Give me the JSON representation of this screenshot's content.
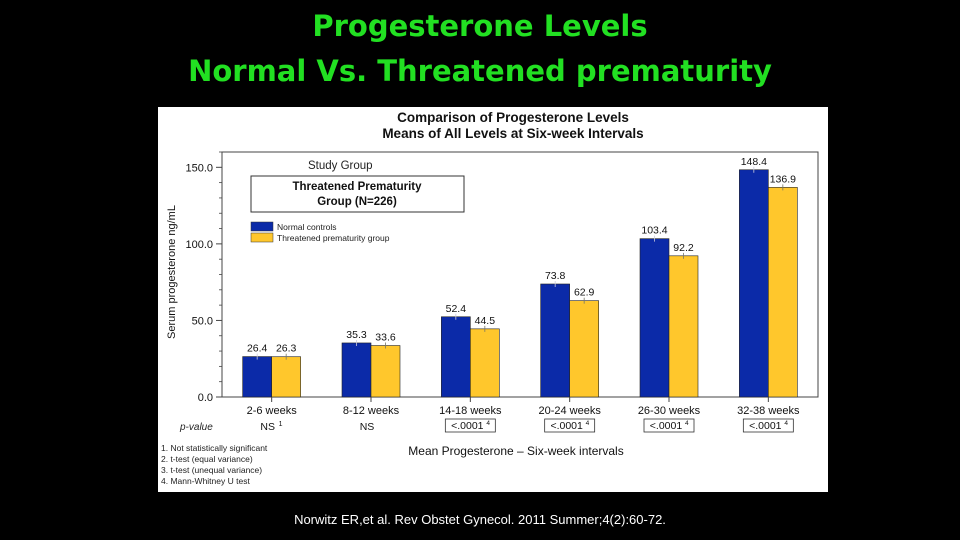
{
  "slide": {
    "title_line1": "Progesterone Levels",
    "title_line2": "Normal Vs. Threatened prematurity",
    "citation": "Norwitz ER,et al. Rev Obstet Gynecol. 2011 Summer;4(2):60-72."
  },
  "colors": {
    "background": "#000000",
    "title": "#22e022",
    "normal_controls": "#0b2aa8",
    "threatened_group": "#ffc72c"
  },
  "chart_data": {
    "type": "bar",
    "title": "Comparison of Progesterone Levels",
    "subtitle": "Means of All Levels at Six-week Intervals",
    "xlabel": "Mean Progesterone – Six-week intervals",
    "ylabel": "Serum progesterone ng/mL",
    "ylim": [
      0,
      160
    ],
    "yticks": [
      "0.0",
      "50.0",
      "100.0",
      "150.0"
    ],
    "ytick_values": [
      0,
      50,
      100,
      150
    ],
    "categories": [
      "2-6 weeks",
      "8-12 weeks",
      "14-18 weeks",
      "20-24 weeks",
      "26-30 weeks",
      "32-38 weeks"
    ],
    "series": [
      {
        "name": "Normal controls",
        "color": "#0b2aa8",
        "values": [
          26.4,
          35.3,
          52.4,
          73.8,
          103.4,
          148.4
        ]
      },
      {
        "name": "Threatened prematurity group",
        "color": "#ffc72c",
        "values": [
          26.3,
          33.6,
          44.5,
          62.9,
          92.2,
          136.9
        ]
      }
    ],
    "data_labels": {
      "normal": [
        "26.4",
        "35.3",
        "52.4",
        "73.8",
        "103.4",
        "148.4"
      ],
      "threatened": [
        "26.3",
        "33.6",
        "44.5",
        "62.9",
        "92.2",
        "136.9"
      ]
    },
    "pvalue_label": "p-value",
    "pvalues": [
      "NS",
      "NS",
      "<.0001",
      "<.0001",
      "<.0001",
      "<.0001"
    ],
    "pvalue_superscripts": [
      "1",
      "",
      "4",
      "4",
      "4",
      "4"
    ],
    "study_group_label": "Study Group",
    "study_group_name_line1": "Threatened Prematurity",
    "study_group_name_line2": "Group (N=226)",
    "legend_placement": "top-left",
    "footnotes": [
      "1. Not statistically significant",
      "2. t-test (equal variance)",
      "3. t-test (unequal variance)",
      "4. Mann-Whitney U test"
    ],
    "grid": false
  }
}
